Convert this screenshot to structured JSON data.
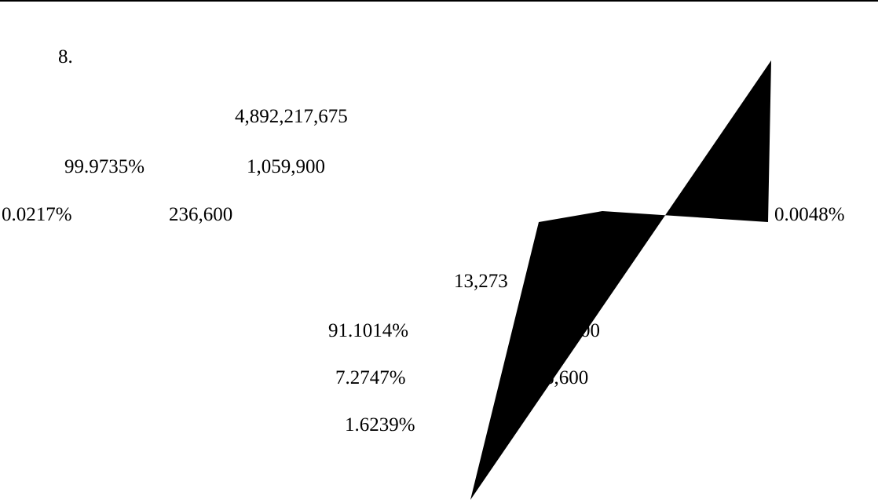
{
  "page": {
    "item_number": "8."
  },
  "upper_block": {
    "total": "4,892,217,675",
    "row1": {
      "percent": "99.9735%",
      "value": "1,059,900"
    },
    "row2": {
      "percent": "0.0217%",
      "value": "236,600"
    },
    "row3": {
      "percent": "0.0048%"
    }
  },
  "lower_block": {
    "total": "13,273",
    "row1": {
      "percent": "91.1014%",
      "value": "1,059,900"
    },
    "row2": {
      "percent": "7.2747%",
      "value": "236,600"
    },
    "row3": {
      "percent": "1.6239%"
    }
  },
  "colors": {
    "text": "#000000",
    "shape_fill": "#000000",
    "background": "#ffffff"
  }
}
